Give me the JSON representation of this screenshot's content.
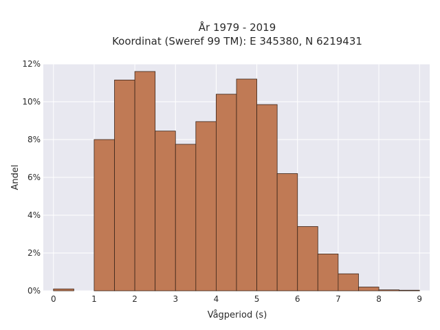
{
  "chart_data": {
    "type": "bar",
    "title_lines": [
      "År 1979 - 2019",
      "Koordinat (Sweref 99 TM): E 345380, N 6219431"
    ],
    "xlabel": "Vågperiod (s)",
    "ylabel": "Andel",
    "x_ticks": [
      "0",
      "1",
      "2",
      "3",
      "4",
      "5",
      "6",
      "7",
      "8",
      "9"
    ],
    "x_tick_values": [
      0,
      1,
      2,
      3,
      4,
      5,
      6,
      7,
      8,
      9
    ],
    "y_ticks": [
      "0%",
      "2%",
      "4%",
      "6%",
      "8%",
      "10%",
      "12%"
    ],
    "y_tick_values": [
      0,
      2,
      4,
      6,
      8,
      10,
      12
    ],
    "xlim": [
      -0.25,
      9.25
    ],
    "ylim": [
      0,
      12
    ],
    "bin_width": 0.5,
    "bin_starts": [
      0,
      0.5,
      1,
      1.5,
      2,
      2.5,
      3,
      3.5,
      4,
      4.5,
      5,
      5.5,
      6,
      6.5,
      7,
      7.5,
      8,
      8.5
    ],
    "values": [
      0.1,
      0,
      8.0,
      11.15,
      11.6,
      8.45,
      7.75,
      8.95,
      10.4,
      11.2,
      9.85,
      6.2,
      3.4,
      1.95,
      0.9,
      0.2,
      0.05,
      0.03
    ],
    "grid": true,
    "colors": {
      "bar_fill": "#c07a55",
      "bar_edge": "#3a2418",
      "plot_background": "#e8e8f0",
      "grid": "#ffffff"
    }
  }
}
